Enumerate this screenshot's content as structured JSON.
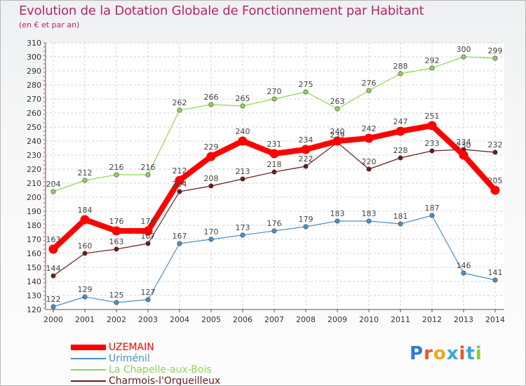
{
  "title": "Evolution de la Dotation Globale de Fonctionnement par Habitant",
  "subtitle": "(en € et par an)",
  "logo": {
    "letters": [
      "P",
      "r",
      "o",
      "x",
      "i",
      "t",
      "i"
    ],
    "colors": [
      "#2e7bd6",
      "#e8542a",
      "#f2a71b",
      "#3aa7d8",
      "#e8542a",
      "#3aa7d8",
      "#8fc63f"
    ]
  },
  "chart_data": {
    "type": "line",
    "title": "Evolution de la Dotation Globale de Fonctionnement par Habitant",
    "subtitle": "(en € et par an)",
    "xlabel": "",
    "ylabel": "",
    "x": [
      "2000",
      "2001",
      "2002",
      "2003",
      "2004",
      "2005",
      "2006",
      "2007",
      "2008",
      "2009",
      "2010",
      "2011",
      "2012",
      "2013",
      "2014"
    ],
    "ylim": [
      120,
      310
    ],
    "yticks": [
      120,
      130,
      140,
      150,
      160,
      170,
      180,
      190,
      200,
      210,
      220,
      230,
      240,
      250,
      260,
      270,
      280,
      290,
      300,
      310
    ],
    "grid": true,
    "legend_position": "bottom-left",
    "series": [
      {
        "name": "UZEMAIN",
        "color": "#ff0000",
        "values": [
          163,
          184,
          176,
          176,
          212,
          229,
          240,
          231,
          234,
          240,
          242,
          247,
          251,
          230,
          205
        ]
      },
      {
        "name": "Uriménil",
        "color": "#4a90c8",
        "values": [
          122,
          129,
          125,
          127,
          167,
          170,
          173,
          176,
          179,
          183,
          183,
          181,
          187,
          146,
          141
        ]
      },
      {
        "name": "La Chapelle-aux-Bois",
        "color": "#8fd45a",
        "values": [
          204,
          212,
          216,
          216,
          262,
          266,
          265,
          270,
          275,
          263,
          276,
          288,
          292,
          300,
          299
        ]
      },
      {
        "name": "Charmois-l'Orgueilleux",
        "color": "#6b1a1a",
        "values": [
          144,
          160,
          163,
          167,
          204,
          208,
          213,
          218,
          222,
          239,
          220,
          228,
          233,
          234,
          232
        ]
      }
    ]
  }
}
